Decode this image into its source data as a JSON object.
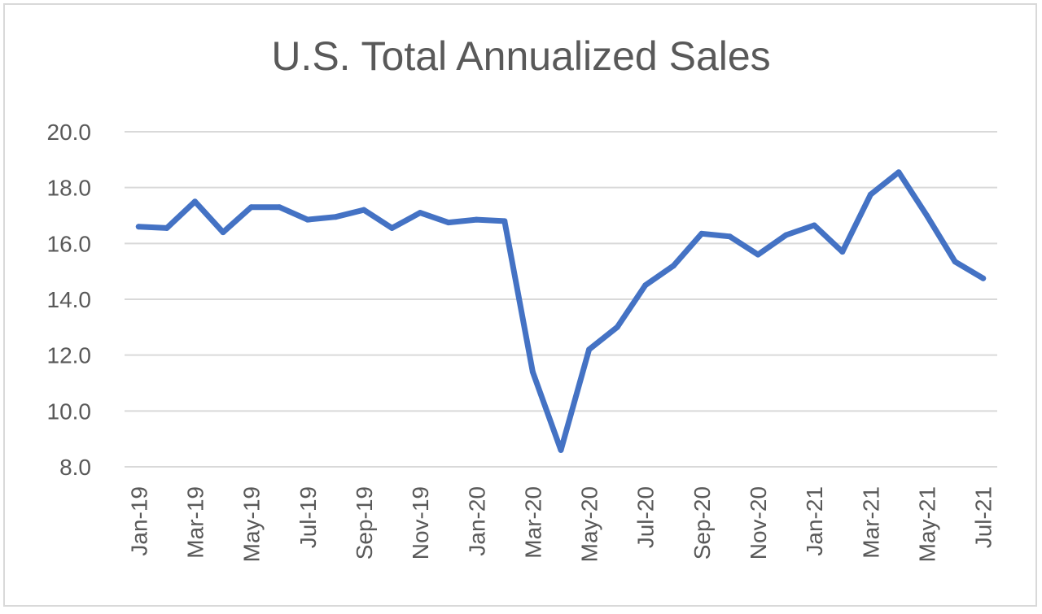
{
  "chart_data": {
    "type": "line",
    "title": "U.S. Total Annualized Sales",
    "xlabel": "",
    "ylabel": "",
    "ylim": [
      8.0,
      20.0
    ],
    "yticks": [
      "8.0",
      "10.0",
      "12.0",
      "14.0",
      "16.0",
      "18.0",
      "20.0"
    ],
    "grid": true,
    "line_color": "#4472C4",
    "x": [
      "Jan-19",
      "Feb-19",
      "Mar-19",
      "Apr-19",
      "May-19",
      "Jun-19",
      "Jul-19",
      "Aug-19",
      "Sep-19",
      "Oct-19",
      "Nov-19",
      "Dec-19",
      "Jan-20",
      "Feb-20",
      "Mar-20",
      "Apr-20",
      "May-20",
      "Jun-20",
      "Jul-20",
      "Aug-20",
      "Sep-20",
      "Oct-20",
      "Nov-20",
      "Dec-20",
      "Jan-21",
      "Feb-21",
      "Mar-21",
      "Apr-21",
      "May-21",
      "Jun-21",
      "Jul-21"
    ],
    "xtick_labels": [
      "Jan-19",
      "Mar-19",
      "May-19",
      "Jul-19",
      "Sep-19",
      "Nov-19",
      "Jan-20",
      "Mar-20",
      "May-20",
      "Jul-20",
      "Sep-20",
      "Nov-20",
      "Jan-21",
      "Mar-21",
      "May-21",
      "Jul-21"
    ],
    "series": [
      {
        "values": [
          16.6,
          16.55,
          17.5,
          16.4,
          17.3,
          17.3,
          16.85,
          16.95,
          17.2,
          16.55,
          17.1,
          16.75,
          16.85,
          16.8,
          11.4,
          8.6,
          12.2,
          13.0,
          14.5,
          15.2,
          16.35,
          16.25,
          15.6,
          16.3,
          16.65,
          15.7,
          17.75,
          18.55,
          17.0,
          15.35,
          14.75
        ]
      }
    ]
  }
}
